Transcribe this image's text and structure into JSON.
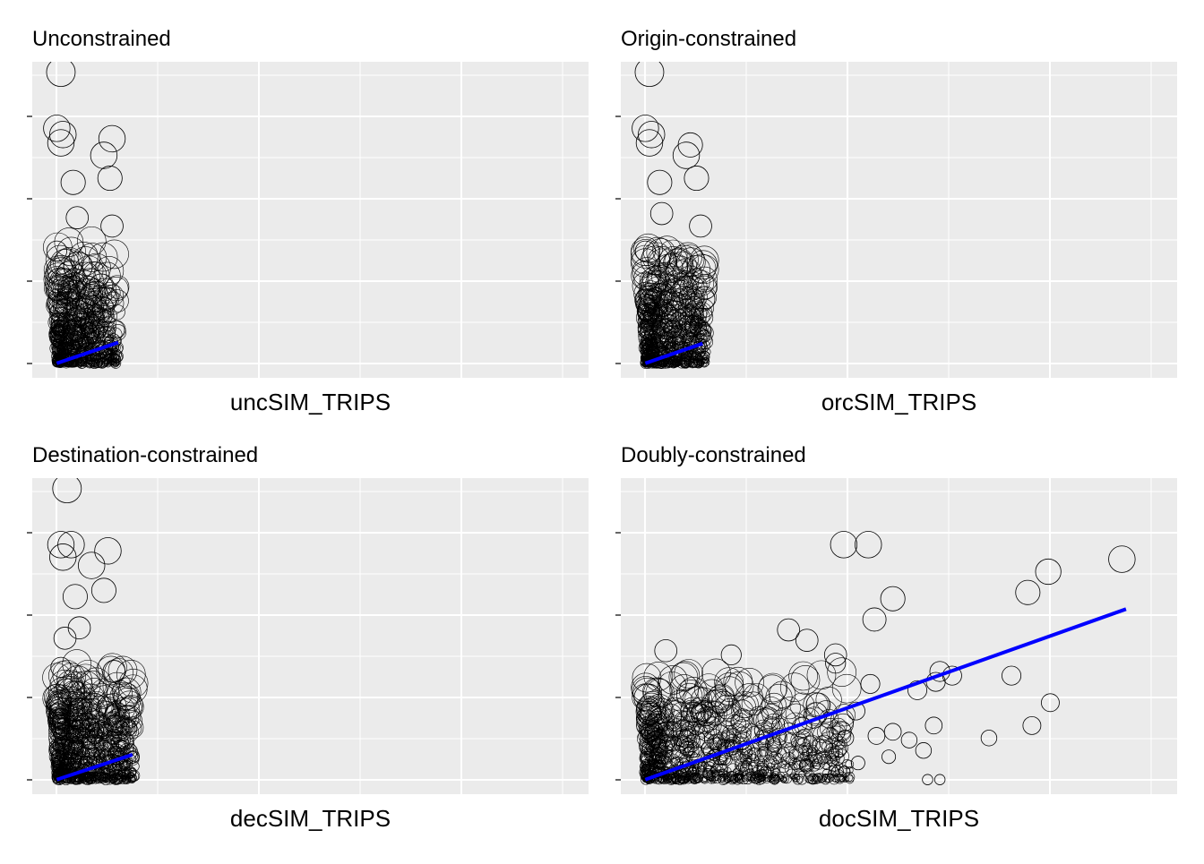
{
  "figure": {
    "colors": {
      "panel_bg": "#EBEBEB",
      "grid": "#FFFFFF",
      "point_stroke": "#000000",
      "fit_line": "#0000FF",
      "tick": "#333333",
      "text": "#000000"
    }
  },
  "chart_data": [
    {
      "type": "scatter",
      "title": "Unconstrained",
      "xlabel": "uncSIM_TRIPS",
      "ylabel": "",
      "x_tick_labels": [],
      "y_tick_labels": [],
      "xlim": [
        -0.12,
        2.6
      ],
      "ylim": [
        -0.07,
        1.45
      ],
      "grid": true,
      "points": [
        {
          "x": 0.02,
          "y": 1.4,
          "s": 1.0
        },
        {
          "x": 0.0,
          "y": 1.13,
          "s": 0.9
        },
        {
          "x": 0.03,
          "y": 1.1,
          "s": 0.9
        },
        {
          "x": 0.02,
          "y": 1.06,
          "s": 0.9
        },
        {
          "x": 0.27,
          "y": 1.08,
          "s": 0.9
        },
        {
          "x": 0.23,
          "y": 1.0,
          "s": 0.9
        },
        {
          "x": 0.26,
          "y": 0.89,
          "s": 0.8
        },
        {
          "x": 0.08,
          "y": 0.87,
          "s": 0.8
        },
        {
          "x": 0.1,
          "y": 0.7,
          "s": 0.7
        },
        {
          "x": 0.27,
          "y": 0.66,
          "s": 0.7
        },
        {
          "x": 0.0,
          "y": 0.54,
          "s": 0.6
        }
      ],
      "cluster": {
        "x_max": 0.3,
        "y_max": 0.6,
        "count": 650
      },
      "fit_line": {
        "x": [
          0.0,
          0.3
        ],
        "y": [
          0.0,
          0.1
        ]
      }
    },
    {
      "type": "scatter",
      "title": "Origin-constrained",
      "xlabel": "orcSIM_TRIPS",
      "ylabel": "",
      "x_tick_labels": [],
      "y_tick_labels": [],
      "xlim": [
        -0.12,
        2.6
      ],
      "ylim": [
        -0.07,
        1.45
      ],
      "grid": true,
      "points": [
        {
          "x": 0.02,
          "y": 1.4,
          "s": 1.0
        },
        {
          "x": 0.0,
          "y": 1.13,
          "s": 0.9
        },
        {
          "x": 0.03,
          "y": 1.1,
          "s": 0.9
        },
        {
          "x": 0.02,
          "y": 1.06,
          "s": 0.9
        },
        {
          "x": 0.22,
          "y": 1.05,
          "s": 0.8
        },
        {
          "x": 0.2,
          "y": 1.0,
          "s": 0.9
        },
        {
          "x": 0.25,
          "y": 0.89,
          "s": 0.8
        },
        {
          "x": 0.07,
          "y": 0.87,
          "s": 0.8
        },
        {
          "x": 0.08,
          "y": 0.72,
          "s": 0.7
        },
        {
          "x": 0.27,
          "y": 0.66,
          "s": 0.7
        },
        {
          "x": 0.0,
          "y": 0.54,
          "s": 0.6
        }
      ],
      "cluster": {
        "x_max": 0.3,
        "y_max": 0.6,
        "count": 650
      },
      "fit_line": {
        "x": [
          0.0,
          0.28
        ],
        "y": [
          0.0,
          0.095
        ]
      }
    },
    {
      "type": "scatter",
      "title": "Destination-constrained",
      "xlabel": "decSIM_TRIPS",
      "ylabel": "",
      "x_tick_labels": [],
      "y_tick_labels": [],
      "xlim": [
        -0.12,
        2.6
      ],
      "ylim": [
        -0.07,
        1.45
      ],
      "grid": true,
      "points": [
        {
          "x": 0.05,
          "y": 1.4,
          "s": 1.0
        },
        {
          "x": 0.02,
          "y": 1.13,
          "s": 0.9
        },
        {
          "x": 0.07,
          "y": 1.13,
          "s": 0.9
        },
        {
          "x": 0.03,
          "y": 1.07,
          "s": 0.9
        },
        {
          "x": 0.25,
          "y": 1.1,
          "s": 0.9
        },
        {
          "x": 0.17,
          "y": 1.03,
          "s": 0.9
        },
        {
          "x": 0.23,
          "y": 0.91,
          "s": 0.8
        },
        {
          "x": 0.09,
          "y": 0.88,
          "s": 0.8
        },
        {
          "x": 0.11,
          "y": 0.73,
          "s": 0.7
        },
        {
          "x": 0.04,
          "y": 0.68,
          "s": 0.7
        },
        {
          "x": 0.28,
          "y": 0.52,
          "s": 0.7
        },
        {
          "x": 0.02,
          "y": 0.54,
          "s": 0.6
        }
      ],
      "cluster": {
        "x_max": 0.38,
        "y_max": 0.6,
        "count": 750
      },
      "fit_line": {
        "x": [
          0.0,
          0.37
        ],
        "y": [
          0.0,
          0.12
        ]
      }
    },
    {
      "type": "scatter",
      "title": "Doubly-constrained",
      "xlabel": "docSIM_TRIPS",
      "ylabel": "",
      "x_tick_labels": [],
      "y_tick_labels": [],
      "xlim": [
        -0.12,
        2.6
      ],
      "ylim": [
        -0.07,
        1.45
      ],
      "grid": true,
      "points": [
        {
          "x": 0.97,
          "y": 1.13,
          "s": 0.9
        },
        {
          "x": 1.09,
          "y": 1.13,
          "s": 0.9
        },
        {
          "x": 2.33,
          "y": 1.06,
          "s": 0.9
        },
        {
          "x": 1.97,
          "y": 1.0,
          "s": 0.85
        },
        {
          "x": 1.87,
          "y": 0.9,
          "s": 0.8
        },
        {
          "x": 1.21,
          "y": 0.87,
          "s": 0.8
        },
        {
          "x": 1.12,
          "y": 0.77,
          "s": 0.75
        },
        {
          "x": 0.7,
          "y": 0.72,
          "s": 0.7
        },
        {
          "x": 0.79,
          "y": 0.67,
          "s": 0.7
        },
        {
          "x": 0.1,
          "y": 0.62,
          "s": 0.7
        },
        {
          "x": 0.93,
          "y": 0.6,
          "s": 0.7
        },
        {
          "x": 0.42,
          "y": 0.6,
          "s": 0.6
        },
        {
          "x": 0.93,
          "y": 0.56,
          "s": 0.6
        },
        {
          "x": 1.44,
          "y": 0.52,
          "s": 0.6
        },
        {
          "x": 1.5,
          "y": 0.5,
          "s": 0.55
        },
        {
          "x": 1.1,
          "y": 0.46,
          "s": 0.55
        },
        {
          "x": 1.42,
          "y": 0.47,
          "s": 0.55
        },
        {
          "x": 1.79,
          "y": 0.5,
          "s": 0.55
        },
        {
          "x": 1.33,
          "y": 0.43,
          "s": 0.55
        },
        {
          "x": 1.98,
          "y": 0.37,
          "s": 0.5
        },
        {
          "x": 1.03,
          "y": 0.33,
          "s": 0.5
        },
        {
          "x": 1.89,
          "y": 0.26,
          "s": 0.5
        },
        {
          "x": 1.41,
          "y": 0.26,
          "s": 0.45
        },
        {
          "x": 1.21,
          "y": 0.23,
          "s": 0.45
        },
        {
          "x": 0.98,
          "y": 0.2,
          "s": 0.4
        },
        {
          "x": 1.13,
          "y": 0.21,
          "s": 0.45
        },
        {
          "x": 1.29,
          "y": 0.19,
          "s": 0.4
        },
        {
          "x": 1.68,
          "y": 0.2,
          "s": 0.4
        },
        {
          "x": 1.36,
          "y": 0.14,
          "s": 0.4
        },
        {
          "x": 1.19,
          "y": 0.11,
          "s": 0.3
        },
        {
          "x": 1.04,
          "y": 0.08,
          "s": 0.3
        },
        {
          "x": 0.94,
          "y": 0.04,
          "s": 0.2
        },
        {
          "x": 1.38,
          "y": 0.0,
          "s": 0.15
        },
        {
          "x": 1.44,
          "y": 0.0,
          "s": 0.15
        }
      ],
      "cluster": {
        "x_max": 1.0,
        "y_max": 0.55,
        "count": 900
      },
      "fit_line": {
        "x": [
          0.0,
          2.35
        ],
        "y": [
          0.0,
          0.82
        ]
      }
    }
  ]
}
